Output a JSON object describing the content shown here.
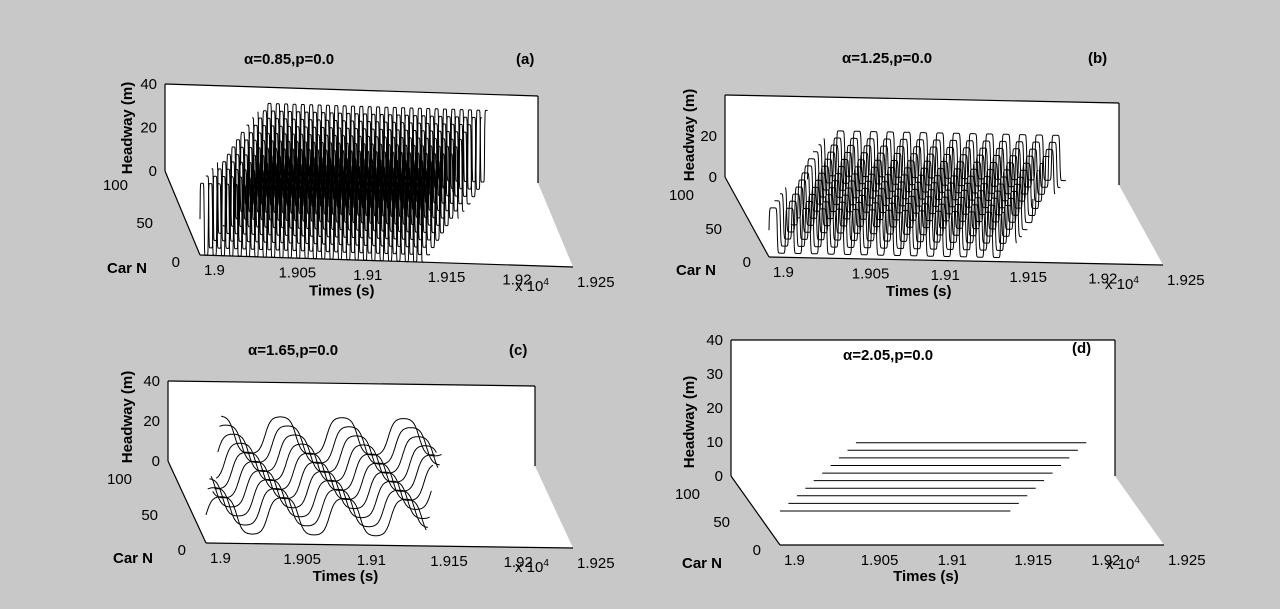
{
  "figure": {
    "background": "#c8c8c8",
    "plot_face": "#ffffff",
    "line_color": "#000000"
  },
  "chart_data": [
    {
      "type": "line3d",
      "panel": "(a)",
      "title": "α=0.85,p=0.0",
      "xlabel": "Times (s)",
      "ylabel": "Car N",
      "zlabel": "Headway (m)",
      "x_ticks": [
        "1.9",
        "1.905",
        "1.91",
        "1.915",
        "1.92",
        "1.925"
      ],
      "x_multiplier": "x 10",
      "x_exponent": "4",
      "y_ticks": [
        "0",
        "50",
        "100"
      ],
      "z_ticks": [
        "0",
        "20",
        "40"
      ],
      "xlim": [
        19000,
        19250
      ],
      "ylim": [
        0,
        100
      ],
      "zlim": [
        0,
        40
      ],
      "pattern": {
        "cars": [
          0,
          9,
          18,
          27,
          36,
          45,
          54,
          63,
          72,
          81,
          90,
          99
        ],
        "t_start": 19000,
        "t_end": 19150,
        "x_shift_per_car": 6,
        "period_s": 5.6,
        "z_low": 0,
        "z_high": 33,
        "shape": "square"
      }
    },
    {
      "type": "line3d",
      "panel": "(b)",
      "title": "α=1.25,p=0.0",
      "xlabel": "Times (s)",
      "ylabel": "Car N",
      "zlabel": "Headway (m)",
      "x_ticks": [
        "1.9",
        "1.905",
        "1.91",
        "1.915",
        "1.92",
        "1.925"
      ],
      "x_multiplier": "x 10",
      "x_exponent": "4",
      "y_ticks": [
        "0",
        "50",
        "100"
      ],
      "z_ticks": [
        "0",
        "20"
      ],
      "xlim": [
        19000,
        19250
      ],
      "ylim": [
        0,
        100
      ],
      "zlim": [
        0,
        40
      ],
      "pattern": {
        "cars": [
          0,
          9,
          18,
          27,
          36,
          45,
          54,
          63,
          72,
          81,
          90,
          99
        ],
        "t_start": 19000,
        "t_end": 19150,
        "x_shift_per_car": 6,
        "period_s": 10.5,
        "z_low": 2,
        "z_high": 24,
        "shape": "square"
      }
    },
    {
      "type": "line3d",
      "panel": "(c)",
      "title": "α=1.65,p=0.0",
      "xlabel": "Times (s)",
      "ylabel": "Car N",
      "zlabel": "Headway (m)",
      "x_ticks": [
        "1.9",
        "1.905",
        "1.91",
        "1.915",
        "1.92",
        "1.925"
      ],
      "x_multiplier": "x 10",
      "x_exponent": "4",
      "y_ticks": [
        "0",
        "50",
        "100"
      ],
      "z_ticks": [
        "0",
        "20",
        "40"
      ],
      "xlim": [
        19000,
        19250
      ],
      "ylim": [
        0,
        100
      ],
      "zlim": [
        0,
        40
      ],
      "pattern": {
        "cars": [
          0,
          11,
          22,
          33,
          44,
          55,
          66,
          77,
          88,
          99
        ],
        "t_start": 19000,
        "t_end": 19150,
        "x_shift_per_car": 4,
        "period_s": 42,
        "z_low": 4,
        "z_high": 24,
        "shape": "smooth"
      }
    },
    {
      "type": "line3d",
      "panel": "(d)",
      "title": "α=2.05,p=0.0",
      "xlabel": "Times (s)",
      "ylabel": "Car N",
      "zlabel": "Headway (m)",
      "x_ticks": [
        "1.9",
        "1.905",
        "1.91",
        "1.915",
        "1.92",
        "1.925"
      ],
      "x_multiplier": "x 10",
      "x_exponent": "4",
      "y_ticks": [
        "0",
        "50",
        "100"
      ],
      "z_ticks": [
        "0",
        "10",
        "20",
        "30",
        "40"
      ],
      "xlim": [
        19000,
        19250
      ],
      "ylim": [
        0,
        100
      ],
      "zlim": [
        0,
        40
      ],
      "pattern": {
        "cars": [
          0,
          11,
          22,
          33,
          44,
          55,
          66,
          77,
          88,
          99
        ],
        "t_start": 19000,
        "t_end": 19150,
        "x_shift_per_car": 9,
        "period_s": 0,
        "z_low": 10,
        "z_high": 10,
        "shape": "flat"
      }
    }
  ]
}
